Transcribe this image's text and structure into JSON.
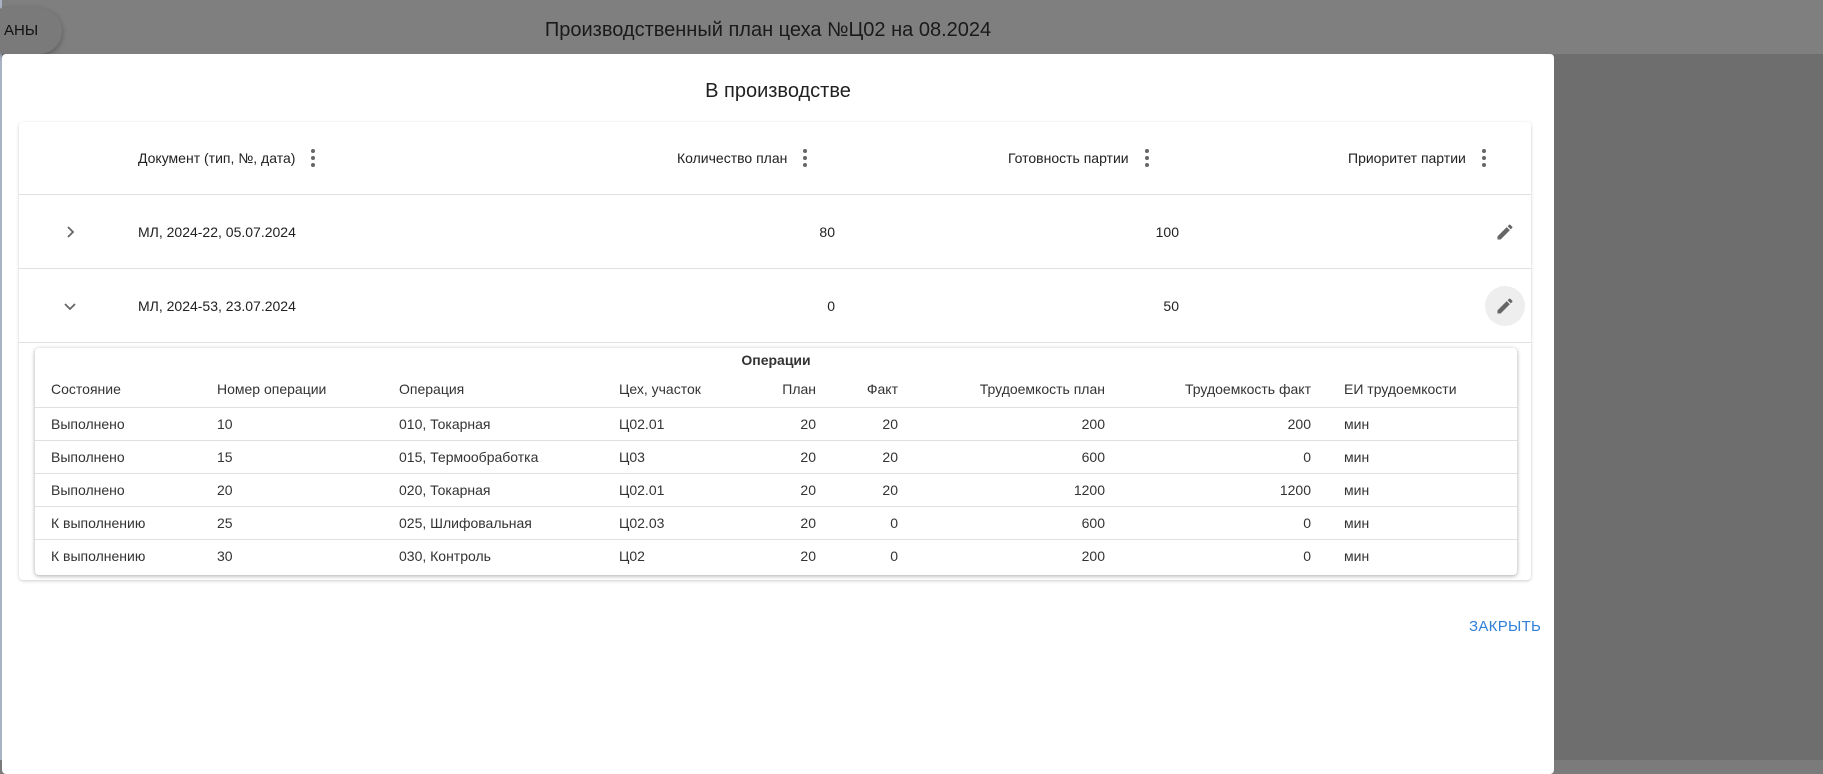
{
  "app": {
    "back_button": "АНЫ",
    "title": "Производственный план цеха №Ц02 на 08.2024"
  },
  "dialog": {
    "title": "В производстве",
    "close_label": "ЗАКРЫТЬ",
    "columns": [
      "Документ (тип, №, дата)",
      "Количество план",
      "Готовность партии",
      "Приоритет партии"
    ],
    "rows": [
      {
        "document": "МЛ, 2024-22, 05.07.2024",
        "qty_plan": "80",
        "readiness": "100",
        "priority": "",
        "expanded": false
      },
      {
        "document": "МЛ, 2024-53, 23.07.2024",
        "qty_plan": "0",
        "readiness": "50",
        "priority": "",
        "expanded": true
      }
    ],
    "operations": {
      "title": "Операции",
      "columns": [
        "Состояние",
        "Номер операции",
        "Операция",
        "Цех, участок",
        "План",
        "Факт",
        "Трудоемкость план",
        "Трудоемкость факт",
        "ЕИ трудоемкости"
      ],
      "rows": [
        [
          "Выполнено",
          "10",
          "010, Токарная",
          "Ц02.01",
          "20",
          "20",
          "200",
          "200",
          "мин"
        ],
        [
          "Выполнено",
          "15",
          "015, Термообработка",
          "Ц03",
          "20",
          "20",
          "600",
          "0",
          "мин"
        ],
        [
          "Выполнено",
          "20",
          "020, Токарная",
          "Ц02.01",
          "20",
          "20",
          "1200",
          "1200",
          "мин"
        ],
        [
          "К выполнению",
          "25",
          "025, Шлифовальная",
          "Ц02.03",
          "20",
          "0",
          "600",
          "0",
          "мин"
        ],
        [
          "К выполнению",
          "30",
          "030, Контроль",
          "Ц02",
          "20",
          "0",
          "200",
          "0",
          "мин"
        ]
      ]
    }
  },
  "colors": {
    "accent": "#2f80d8",
    "backdrop": "#7f7f7f"
  }
}
